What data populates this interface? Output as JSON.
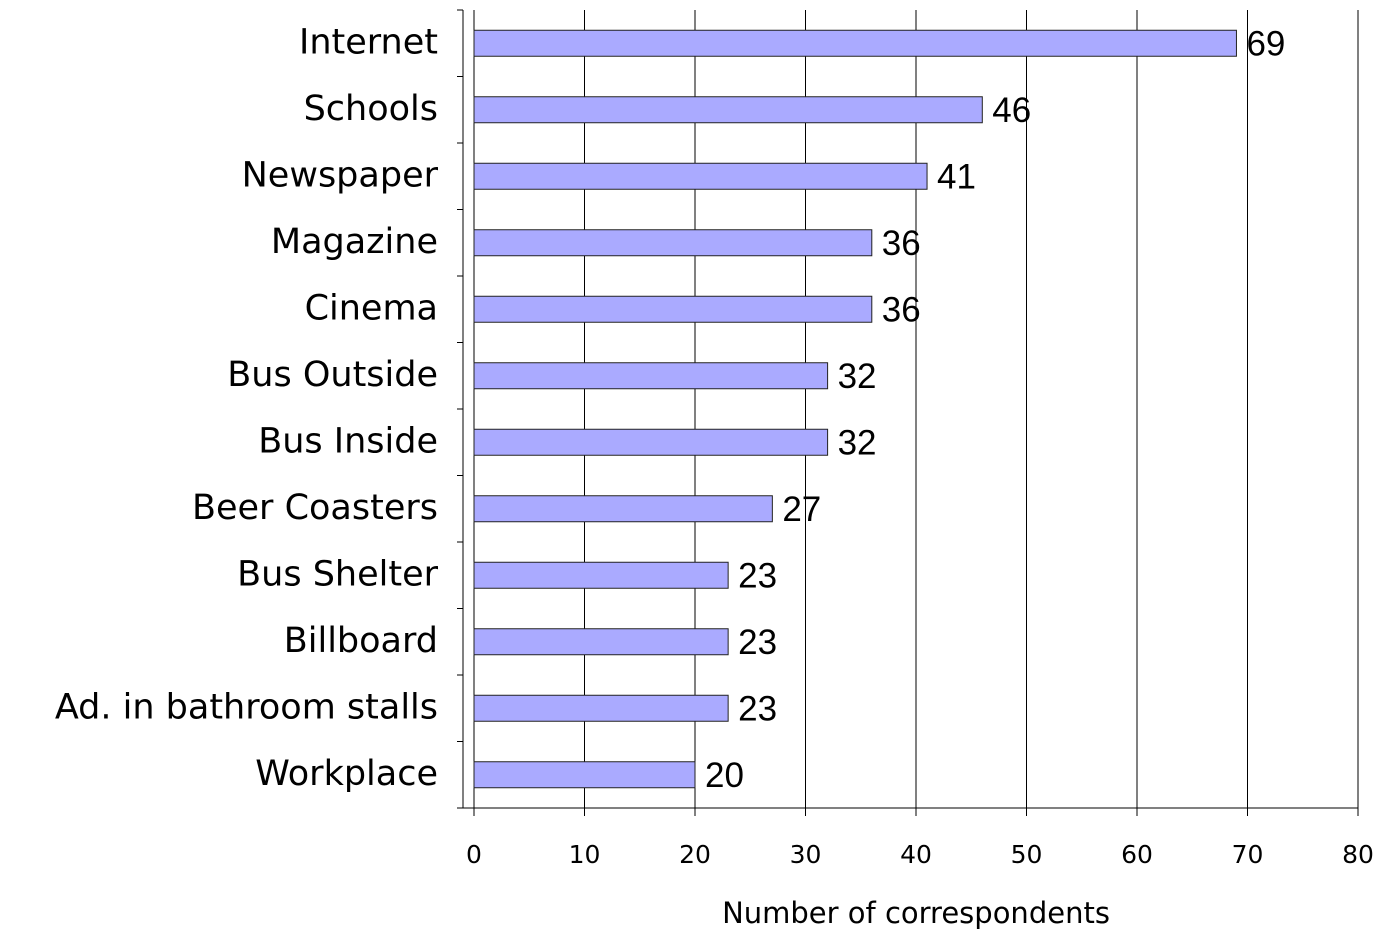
{
  "chart_data": {
    "type": "bar",
    "orientation": "horizontal",
    "categories": [
      "Internet",
      "Schools",
      "Newspaper",
      "Magazine",
      "Cinema",
      "Bus Outside",
      "Bus Inside",
      "Beer Coasters",
      "Bus Shelter",
      "Billboard",
      "Ad. in bathroom stalls",
      "Workplace"
    ],
    "values": [
      69,
      46,
      41,
      36,
      36,
      32,
      32,
      27,
      23,
      23,
      23,
      20
    ],
    "color": "#aaaaff",
    "x_label": "Number of correspondents",
    "xlim": [
      0,
      80
    ],
    "xticks": [
      0,
      10,
      20,
      30,
      40,
      50,
      60,
      70,
      80
    ],
    "grid": true
  }
}
